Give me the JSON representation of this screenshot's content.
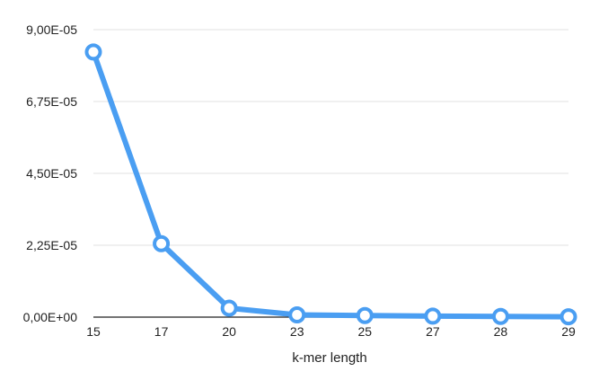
{
  "chart_data": {
    "type": "line",
    "x": [
      "15",
      "17",
      "20",
      "23",
      "25",
      "27",
      "28",
      "29"
    ],
    "series": [
      {
        "values": [
          8.3e-05,
          2.3e-05,
          2.8e-06,
          7e-07,
          5e-07,
          3e-07,
          2e-07,
          1e-07
        ]
      }
    ],
    "xlabel": "k-mer length",
    "ylabel": "",
    "ylim": [
      0,
      9e-05
    ],
    "yticks": [
      0,
      2.25e-05,
      4.5e-05,
      6.75e-05,
      9e-05
    ],
    "ytick_labels": [
      "0,00E+00",
      "2,25E-05",
      "4,50E-05",
      "6,75E-05",
      "9,00E-05"
    ],
    "grid": true,
    "legend": "none",
    "colors": {
      "line": "#4a9ef2",
      "marker_fill": "#ffffff",
      "grid": "#e2e2e2",
      "baseline": "#222222"
    }
  }
}
